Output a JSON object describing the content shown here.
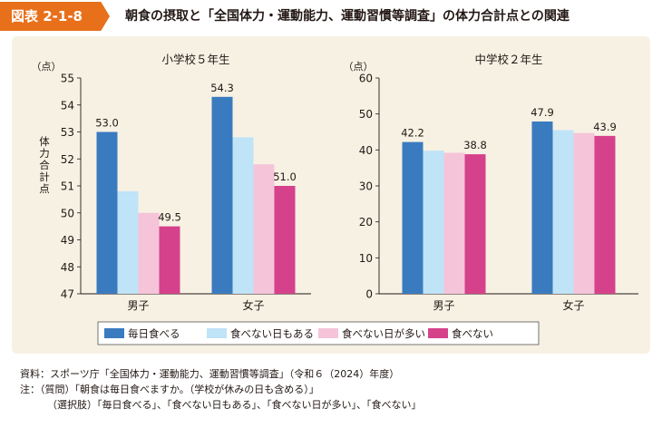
{
  "figure": {
    "label": "図表 2-1-8",
    "title": "朝食の摂取と「全国体力・運動能力、運動習慣等調査」の体力合計点との関連"
  },
  "legend": {
    "items": [
      {
        "label": "毎日食べる",
        "color": "#3a7bc0"
      },
      {
        "label": "食べない日もある",
        "color": "#bfe3f7"
      },
      {
        "label": "食べない日が多い",
        "color": "#f5c4d9"
      },
      {
        "label": "食べない",
        "color": "#d6418c"
      }
    ]
  },
  "notes": {
    "source": "資料：スポーツ庁「全国体力・運動能力、運動習慣等調査」（令和６（2024）年度）",
    "note1": "注：（質問）「朝食は毎日食べますか。（学校が休みの日も含める）」",
    "note2": "（選択肢）「毎日食べる」、「食べない日もある」、「食べない日が多い」、「食べない」"
  },
  "chart_data": [
    {
      "type": "bar",
      "title": "小学校５年生",
      "unit": "（点）",
      "ylabel": "体力合計点",
      "ylim": [
        47,
        55
      ],
      "yticks": [
        47,
        48,
        49,
        50,
        51,
        52,
        53,
        54,
        55
      ],
      "categories": [
        "男子",
        "女子"
      ],
      "series": [
        {
          "name": "毎日食べる",
          "values": [
            53.0,
            54.3
          ],
          "labels": [
            "53.0",
            "54.3"
          ]
        },
        {
          "name": "食べない日もある",
          "values": [
            50.8,
            52.8
          ],
          "labels": [
            "",
            ""
          ]
        },
        {
          "name": "食べない日が多い",
          "values": [
            50.0,
            51.8
          ],
          "labels": [
            "",
            ""
          ]
        },
        {
          "name": "食べない",
          "values": [
            49.5,
            51.0
          ],
          "labels": [
            "49.5",
            "51.0"
          ]
        }
      ]
    },
    {
      "type": "bar",
      "title": "中学校２年生",
      "unit": "（点）",
      "ylabel": "",
      "ylim": [
        0,
        60
      ],
      "yticks": [
        0,
        10,
        20,
        30,
        40,
        50,
        60
      ],
      "categories": [
        "男子",
        "女子"
      ],
      "series": [
        {
          "name": "毎日食べる",
          "values": [
            42.2,
            47.9
          ],
          "labels": [
            "42.2",
            "47.9"
          ]
        },
        {
          "name": "食べない日もある",
          "values": [
            39.8,
            45.5
          ],
          "labels": [
            "",
            ""
          ]
        },
        {
          "name": "食べない日が多い",
          "values": [
            39.2,
            44.7
          ],
          "labels": [
            "",
            ""
          ]
        },
        {
          "name": "食べない",
          "values": [
            38.8,
            43.9
          ],
          "labels": [
            "38.8",
            "43.9"
          ]
        }
      ]
    }
  ]
}
